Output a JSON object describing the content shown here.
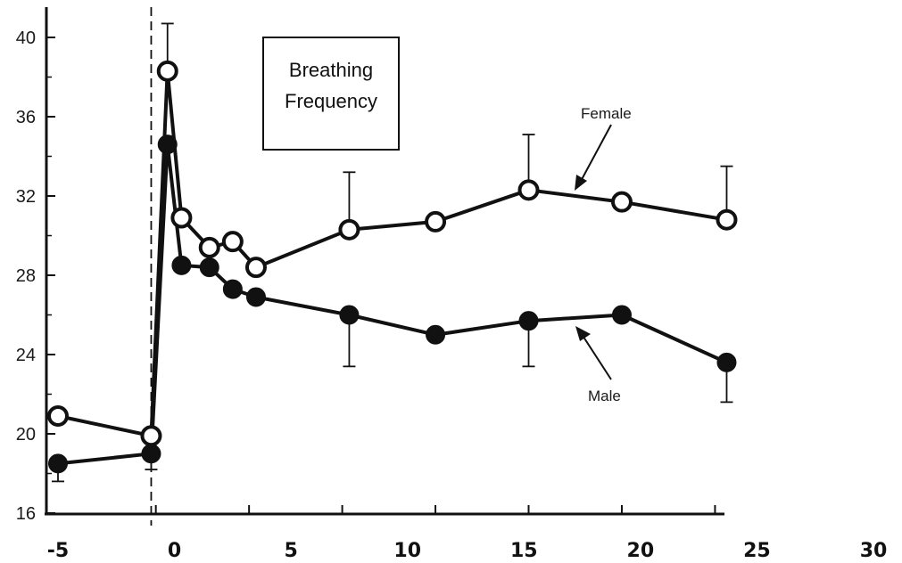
{
  "chart_data": {
    "type": "line",
    "title": "Breathing Frequency",
    "xlabel": "",
    "ylabel": "",
    "xlim": [
      -5,
      30
    ],
    "ylim": [
      16,
      42
    ],
    "y_ticks": [
      "40",
      "36",
      "32",
      "28",
      "24",
      "20",
      "16"
    ],
    "x_ticks": [
      "-5",
      "0",
      "5",
      "10",
      "15",
      "20",
      "25",
      "30"
    ],
    "legend": "annotations with arrows",
    "series": [
      {
        "name": "Female",
        "marker": "open-circle",
        "color": "#111111",
        "x": [
          -5,
          -1,
          -0.3,
          0.3,
          1.5,
          2.5,
          3.5,
          7.5,
          11.2,
          15.2,
          19.2,
          23.7
        ],
        "y": [
          20.9,
          19.9,
          38.3,
          30.9,
          29.4,
          29.7,
          28.4,
          30.3,
          30.7,
          32.3,
          31.7,
          30.8
        ],
        "error_up": [
          null,
          null,
          40.7,
          null,
          null,
          null,
          null,
          33.2,
          null,
          35.1,
          null,
          33.5
        ]
      },
      {
        "name": "Male",
        "marker": "filled-circle",
        "color": "#111111",
        "x": [
          -5,
          -1,
          -0.3,
          0.3,
          1.5,
          2.5,
          3.5,
          7.5,
          11.2,
          15.2,
          19.2,
          23.7
        ],
        "y": [
          18.5,
          19.0,
          34.6,
          28.5,
          28.4,
          27.3,
          26.9,
          26.0,
          25.0,
          25.7,
          26.0,
          23.6
        ],
        "error_down": [
          17.6,
          18.2,
          null,
          null,
          null,
          null,
          null,
          23.4,
          null,
          23.4,
          null,
          21.6
        ]
      }
    ],
    "marker_line": {
      "x": -1
    }
  }
}
